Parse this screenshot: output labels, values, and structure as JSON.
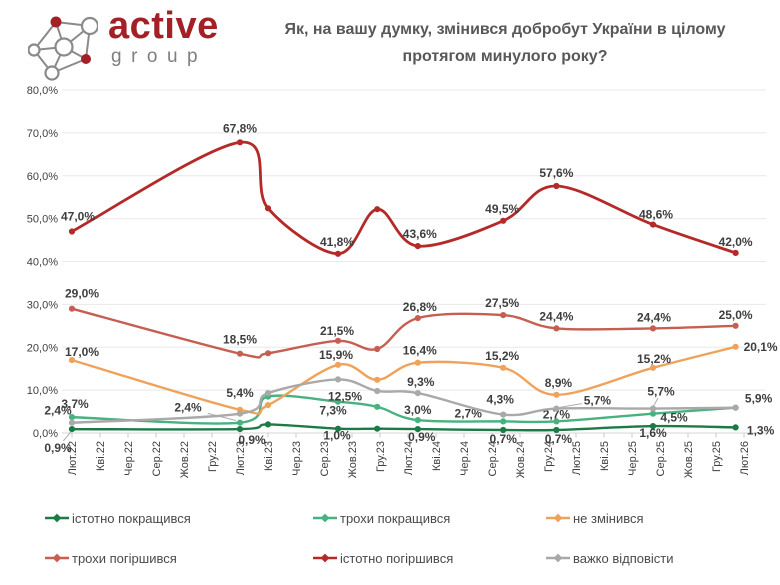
{
  "header": {
    "logo": {
      "brand": "active",
      "sub": "group"
    },
    "title_line1": "Як, на вашу думку, змінився добробут України в цілому",
    "title_line2": "протягом минулого року?"
  },
  "chart_data": {
    "type": "line",
    "title": "Як, на вашу думку, змінився добробут України в цілому протягом минулого року?",
    "x_categories": [
      "Лют.22",
      "Кві.22",
      "Чер.22",
      "Сер.22",
      "Жов.22",
      "Гру.22",
      "Лют.23",
      "Кві.23",
      "Чер.23",
      "Сер.23",
      "Жов.23",
      "Гру.23",
      "Лют.24",
      "Кві.24",
      "Чер.24",
      "Сер.24",
      "Жов.24",
      "Гру.24",
      "Лют.25",
      "Кві.25",
      "Чер.25",
      "Сер.25",
      "Жов.25",
      "Гру.25",
      "Лют.26"
    ],
    "x_index": [
      0,
      6,
      7,
      9.5,
      10.9,
      12.35,
      15.4,
      17.3,
      20.75,
      23.7
    ],
    "ylim": [
      0,
      80
    ],
    "ytick_step": 10,
    "ytick_labels": [
      "0,0%",
      "10,0%",
      "20,0%",
      "30,0%",
      "40,0%",
      "50,0%",
      "60,0%",
      "70,0%",
      "80,0%"
    ],
    "grid": true,
    "legend_position": "bottom",
    "label_format": "one-decimal-comma-percent",
    "series": [
      {
        "key": "significantly-improved",
        "name": "істотно покращився",
        "color": "#1c7a47",
        "values": [
          0.9,
          0.9,
          2.0,
          1.0,
          1.0,
          0.9,
          0.7,
          0.7,
          1.6,
          1.3
        ],
        "labels": [
          {
            "i": 0,
            "dx": -14,
            "dy": 19,
            "leader": true
          },
          {
            "i": 1,
            "dx": 12,
            "dy": 11
          },
          {
            "i": 3,
            "dx": -1,
            "dy": 7
          },
          {
            "i": 5,
            "dx": 4,
            "dy": 8
          },
          {
            "i": 6,
            "dx": 0,
            "dy": 9
          },
          {
            "i": 7,
            "dx": 2,
            "dy": 9
          },
          {
            "i": 8,
            "dx": 0,
            "dy": 7
          },
          {
            "i": 9,
            "dx": 25,
            "dy": 3
          }
        ]
      },
      {
        "key": "slightly-improved",
        "name": "трохи покращився",
        "color": "#47b27f",
        "values": [
          3.7,
          2.4,
          8.5,
          7.3,
          6.1,
          3.0,
          2.7,
          2.7,
          4.5,
          5.9
        ],
        "labels": [
          {
            "i": 0,
            "dx": 3,
            "dy": -13
          },
          {
            "i": 1,
            "dx": -52,
            "dy": -15,
            "leader": true
          },
          {
            "i": 3,
            "dx": -5,
            "dy": 9
          },
          {
            "i": 5,
            "dx": 0,
            "dy": -10
          },
          {
            "i": 6,
            "dx": -35,
            "dy": -8
          },
          {
            "i": 7,
            "dx": 0,
            "dy": -7
          },
          {
            "i": 8,
            "dx": 21,
            "dy": 4
          }
        ]
      },
      {
        "key": "unchanged",
        "name": "не змінився",
        "color": "#efa25b",
        "values": [
          17.0,
          5.4,
          6.5,
          15.9,
          12.4,
          16.4,
          15.2,
          8.9,
          15.2,
          20.1
        ],
        "labels": [
          {
            "i": 0,
            "dx": 10,
            "dy": -8
          },
          {
            "i": 1,
            "dx": 0,
            "dy": -17
          },
          {
            "i": 3,
            "dx": -2,
            "dy": -10
          },
          {
            "i": 5,
            "dx": 2,
            "dy": -12
          },
          {
            "i": 6,
            "dx": -1,
            "dy": -12
          },
          {
            "i": 7,
            "dx": 2,
            "dy": -12
          },
          {
            "i": 8,
            "dx": 1,
            "dy": -9
          },
          {
            "i": 9,
            "dx": 25,
            "dy": 0
          }
        ]
      },
      {
        "key": "slightly-worsened",
        "name": "трохи погіршився",
        "color": "#c65e51",
        "values": [
          29.0,
          18.5,
          18.6,
          21.5,
          19.6,
          26.8,
          27.5,
          24.4,
          24.4,
          25.0
        ],
        "labels": [
          {
            "i": 0,
            "dx": 10,
            "dy": -15
          },
          {
            "i": 1,
            "dx": 0,
            "dy": -14
          },
          {
            "i": 3,
            "dx": -1,
            "dy": -10
          },
          {
            "i": 5,
            "dx": 2,
            "dy": -11
          },
          {
            "i": 6,
            "dx": -1,
            "dy": -12
          },
          {
            "i": 7,
            "dx": 0,
            "dy": -12
          },
          {
            "i": 8,
            "dx": 1,
            "dy": -11
          },
          {
            "i": 9,
            "dx": 0,
            "dy": -11
          }
        ]
      },
      {
        "key": "significantly-worsened",
        "name": "істотно погіршився",
        "color": "#b32a28",
        "values": [
          47.0,
          67.8,
          52.4,
          41.8,
          52.2,
          43.6,
          49.5,
          57.6,
          48.6,
          42.0
        ],
        "labels": [
          {
            "i": 0,
            "dx": 6,
            "dy": -15
          },
          {
            "i": 1,
            "dx": 0,
            "dy": -14
          },
          {
            "i": 3,
            "dx": -1,
            "dy": -12
          },
          {
            "i": 5,
            "dx": 2,
            "dy": -12
          },
          {
            "i": 6,
            "dx": -1,
            "dy": -12
          },
          {
            "i": 7,
            "dx": 0,
            "dy": -13
          },
          {
            "i": 8,
            "dx": 3,
            "dy": -10
          },
          {
            "i": 9,
            "dx": 0,
            "dy": -11
          }
        ]
      },
      {
        "key": "hard-to-say",
        "name": "важко відповісти",
        "color": "#a9a9a9",
        "values": [
          2.4,
          4.5,
          9.3,
          12.5,
          9.8,
          9.3,
          4.3,
          5.7,
          5.7,
          5.9
        ],
        "labels": [
          {
            "i": 0,
            "dx": -14,
            "dy": -12
          },
          {
            "i": 3,
            "dx": 7,
            "dy": 17
          },
          {
            "i": 5,
            "dx": 3,
            "dy": -11
          },
          {
            "i": 6,
            "dx": -3,
            "dy": -15
          },
          {
            "i": 7,
            "dx": 41,
            "dy": -8,
            "leader": true
          },
          {
            "i": 8,
            "dx": 8,
            "dy": -17,
            "leader": true
          },
          {
            "i": 9,
            "dx": 23,
            "dy": -9
          }
        ]
      }
    ]
  }
}
